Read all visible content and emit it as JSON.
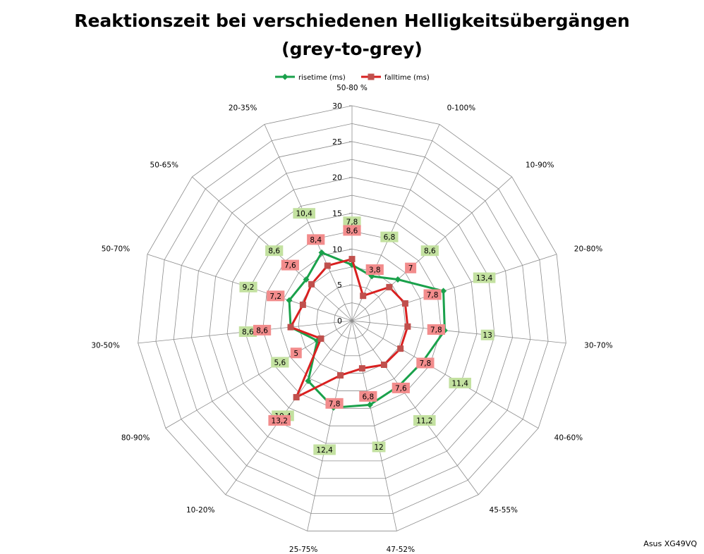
{
  "chart_data": {
    "type": "radar",
    "title_line1": "Reaktionszeit bei verschiedenen Helligkeitsübergängen",
    "title_line2": "(grey-to-grey)",
    "categories": [
      "50-80 %",
      "0-100%",
      "10-90%",
      "20-80%",
      "30-70%",
      "40-60%",
      "45-55%",
      "47-52%",
      "25-75%",
      "10-20%",
      "80-90%",
      "30-50%",
      "50-70%",
      "50-65%",
      "20-35%"
    ],
    "rlim": [
      0,
      30
    ],
    "ticks": [
      "0",
      "5",
      "10",
      "15",
      "20",
      "25",
      "30"
    ],
    "tick_values": [
      0,
      5,
      10,
      15,
      20,
      25,
      30
    ],
    "grid": true,
    "legend_position": "top",
    "series": [
      {
        "name": "risetime (ms)",
        "color": "#1aa14b",
        "label_bg": "#c3e1a0",
        "values": [
          7.8,
          6.8,
          8.6,
          13.4,
          13,
          11.4,
          11.2,
          12,
          12.4,
          10.4,
          5.6,
          8.6,
          9.2,
          8.6,
          10.4
        ],
        "labels": [
          "7,8",
          "6,8",
          "8,6",
          "13,4",
          "13",
          "11,4",
          "11,2",
          "12",
          "12,4",
          "10,4",
          "5,6",
          "8,6",
          "9,2",
          "8,6",
          "10,4"
        ]
      },
      {
        "name": "falltime (ms)",
        "color": "#d92020",
        "label_bg": "#f28c8c",
        "values": [
          8.6,
          3.8,
          7,
          7.8,
          7.8,
          7.8,
          7.6,
          6.8,
          7.8,
          13.2,
          5,
          8.6,
          7.2,
          7.6,
          8.4
        ],
        "labels": [
          "8,6",
          "3,8",
          "7",
          "7,8",
          "7,8",
          "7,8",
          "7,6",
          "6,8",
          "7,8",
          "13,2",
          "5",
          "8,6",
          "7,2",
          "7,6",
          "8,4"
        ]
      }
    ]
  },
  "watermark": "Asus XG49VQ"
}
